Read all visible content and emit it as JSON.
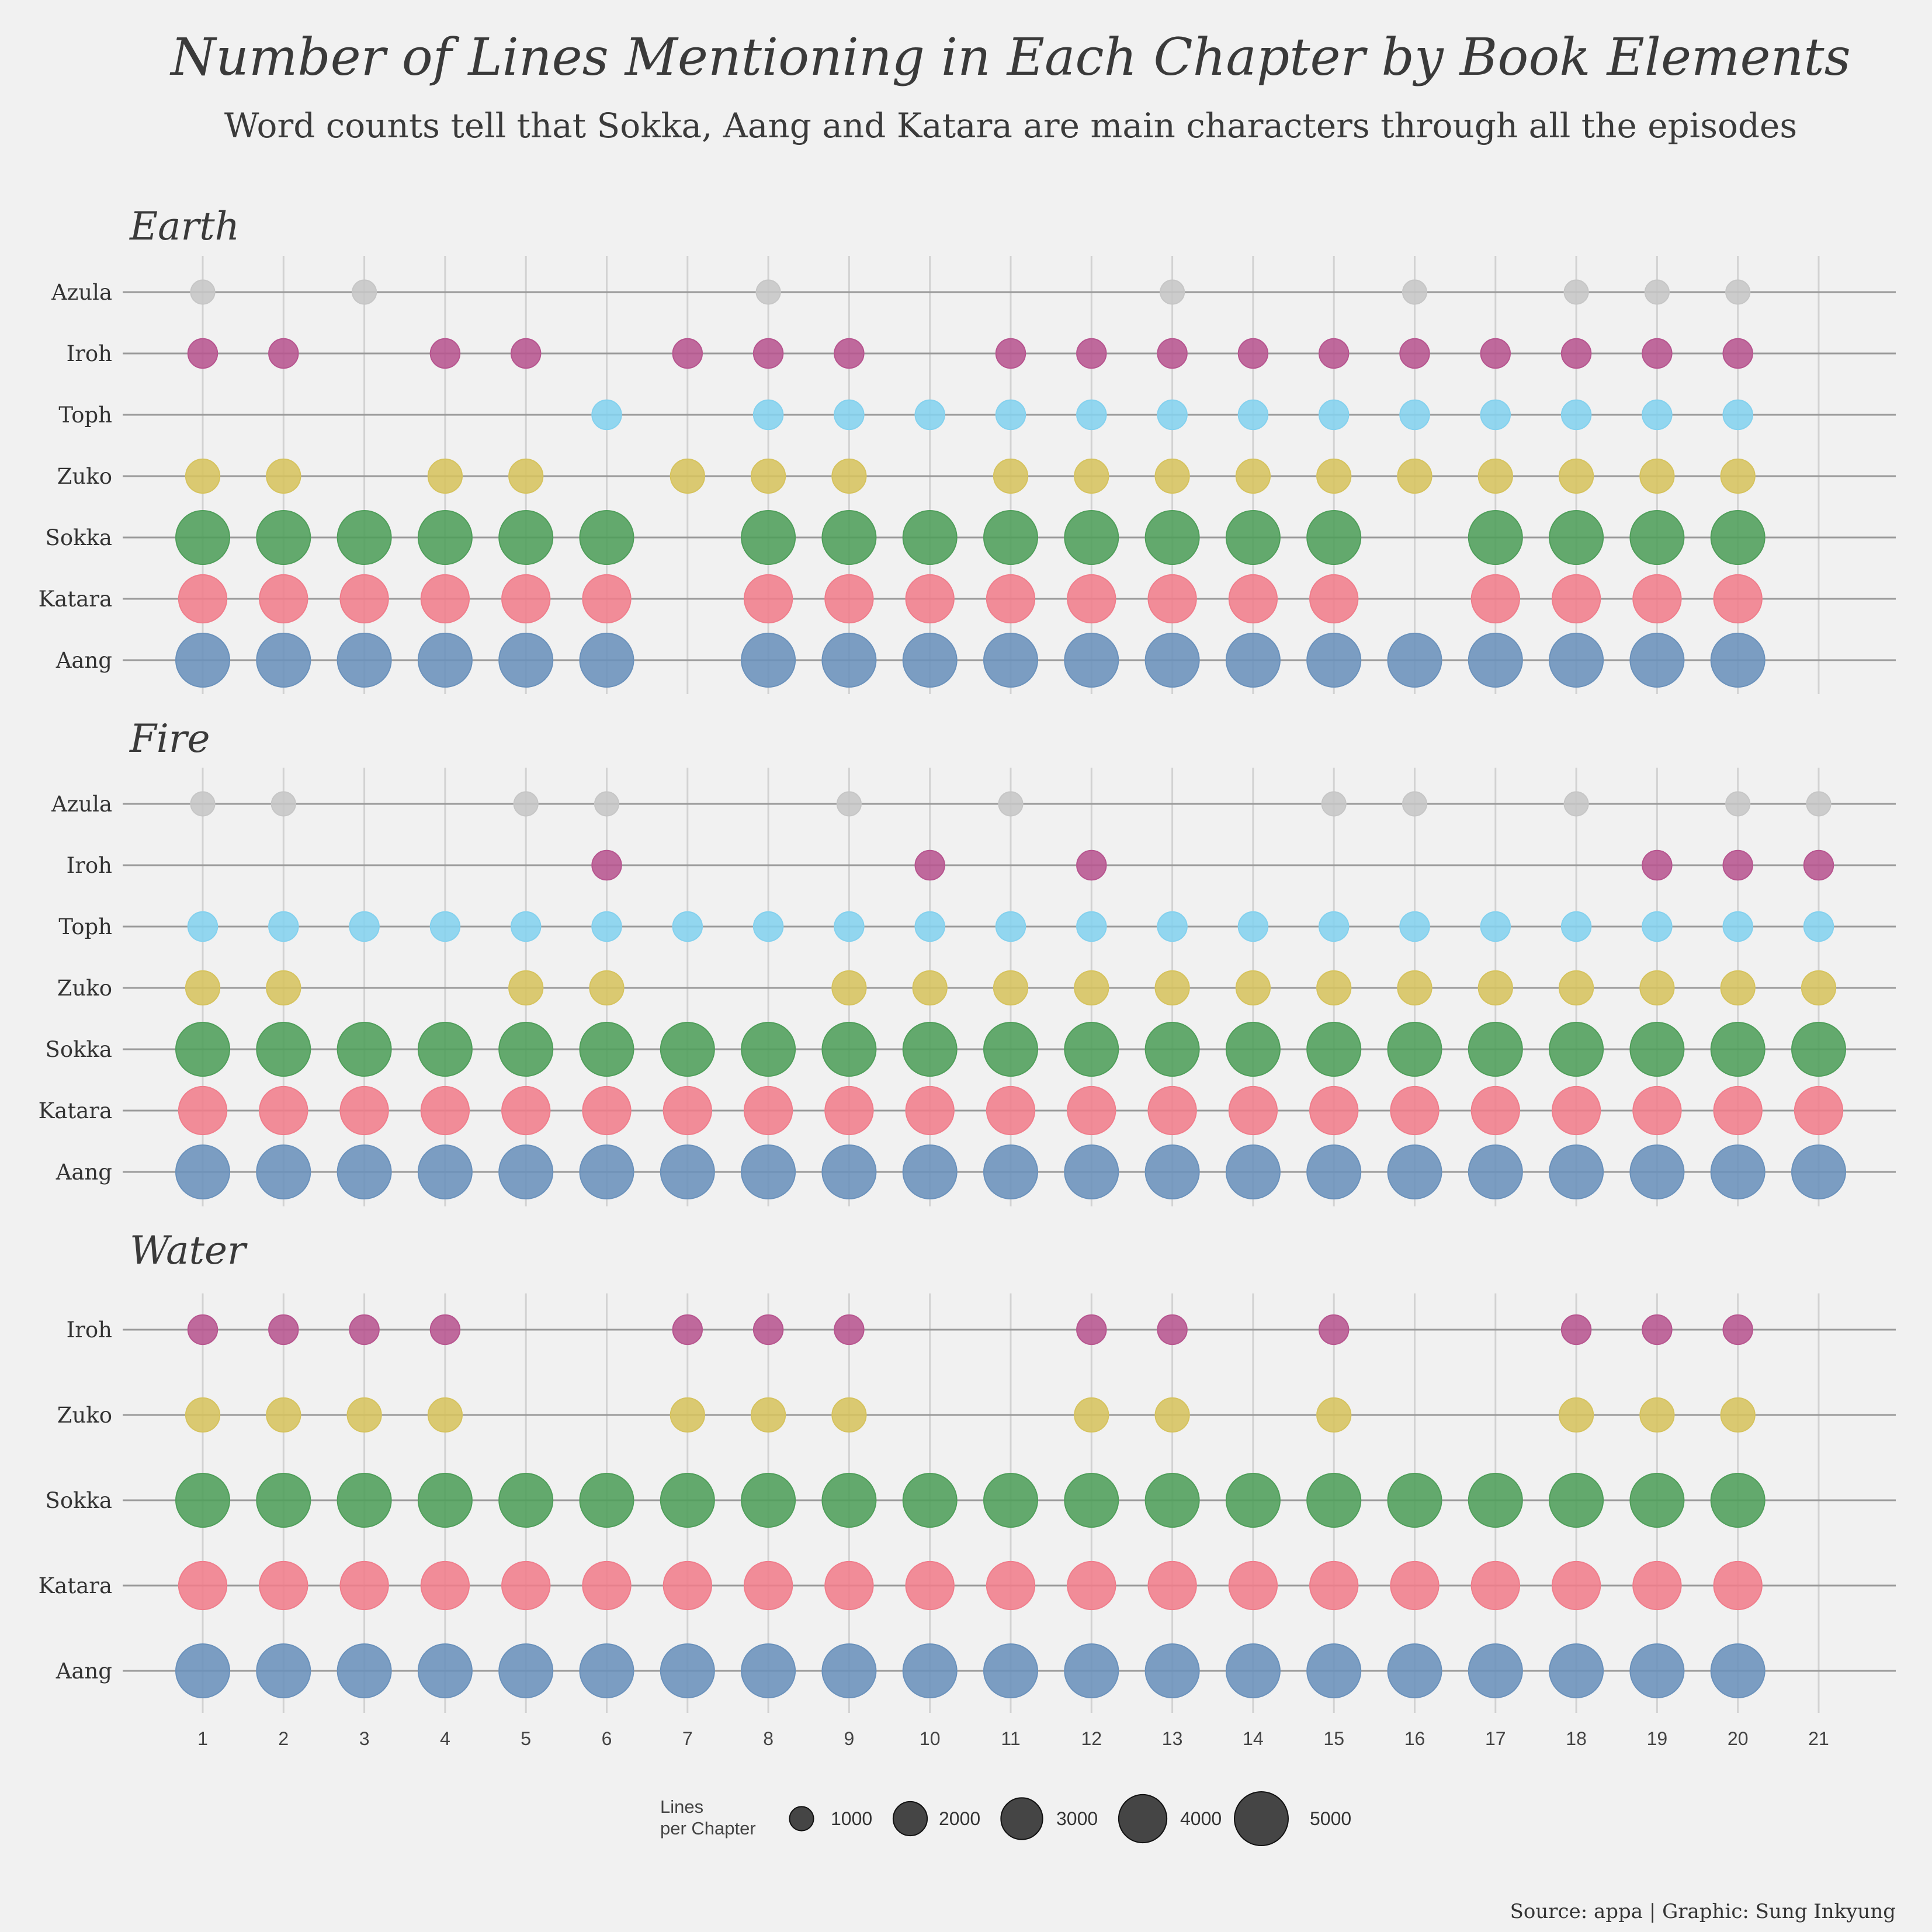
{
  "chart_data": {
    "type": "scatter",
    "title": "Number of Lines Mentioning in Each Chapter by Book Elements",
    "subtitle": "Word counts tell that Sokka, Aang and Katara are main characters through all the episodes",
    "caption": "Source: appa | Graphic: Sung Inkyung",
    "x_ticks": [
      1,
      2,
      3,
      4,
      5,
      6,
      7,
      8,
      9,
      10,
      11,
      12,
      13,
      14,
      15,
      16,
      17,
      18,
      19,
      20,
      21
    ],
    "colors": {
      "Aang": "#6a91bb",
      "Katara": "#f07d8b",
      "Sokka": "#4f9e5a",
      "Zuko": "#d6c35e",
      "Toph": "#84d1ee",
      "Iroh": "#b7558f",
      "Azula": "#c6c6c6"
    },
    "size_by_character": {
      "Aang": 5000,
      "Katara": 4000,
      "Sokka": 5000,
      "Zuko": 2000,
      "Toph": 1500,
      "Iroh": 1500,
      "Azula": 1000
    },
    "legend": {
      "title": "Lines\nper Chapter",
      "values": [
        1000,
        2000,
        3000,
        4000,
        5000
      ],
      "labels": [
        "1000",
        "2000",
        "3000",
        "4000",
        "5000"
      ]
    },
    "panels": [
      {
        "name": "Earth",
        "characters": [
          "Azula",
          "Iroh",
          "Toph",
          "Zuko",
          "Sokka",
          "Katara",
          "Aang"
        ],
        "chapters": {
          "Azula": [
            1,
            3,
            8,
            13,
            16,
            18,
            19,
            20
          ],
          "Iroh": [
            1,
            2,
            4,
            5,
            7,
            8,
            9,
            11,
            12,
            13,
            14,
            15,
            16,
            17,
            18,
            19,
            20
          ],
          "Toph": [
            6,
            8,
            9,
            10,
            11,
            12,
            13,
            14,
            15,
            16,
            17,
            18,
            19,
            20
          ],
          "Zuko": [
            1,
            2,
            4,
            5,
            7,
            8,
            9,
            11,
            12,
            13,
            14,
            15,
            16,
            17,
            18,
            19,
            20
          ],
          "Sokka": [
            1,
            2,
            3,
            4,
            5,
            6,
            8,
            9,
            10,
            11,
            12,
            13,
            14,
            15,
            17,
            18,
            19,
            20
          ],
          "Katara": [
            1,
            2,
            3,
            4,
            5,
            6,
            8,
            9,
            10,
            11,
            12,
            13,
            14,
            15,
            17,
            18,
            19,
            20
          ],
          "Aang": [
            1,
            2,
            3,
            4,
            5,
            6,
            8,
            9,
            10,
            11,
            12,
            13,
            14,
            15,
            16,
            17,
            18,
            19,
            20
          ]
        }
      },
      {
        "name": "Fire",
        "characters": [
          "Azula",
          "Iroh",
          "Toph",
          "Zuko",
          "Sokka",
          "Katara",
          "Aang"
        ],
        "chapters": {
          "Azula": [
            1,
            2,
            5,
            6,
            9,
            11,
            15,
            16,
            18,
            20,
            21
          ],
          "Iroh": [
            6,
            10,
            12,
            19,
            20,
            21
          ],
          "Toph": [
            1,
            2,
            3,
            4,
            5,
            6,
            7,
            8,
            9,
            10,
            11,
            12,
            13,
            14,
            15,
            16,
            17,
            18,
            19,
            20,
            21
          ],
          "Zuko": [
            1,
            2,
            5,
            6,
            9,
            10,
            11,
            12,
            13,
            14,
            15,
            16,
            17,
            18,
            19,
            20,
            21
          ],
          "Sokka": [
            1,
            2,
            3,
            4,
            5,
            6,
            7,
            8,
            9,
            10,
            11,
            12,
            13,
            14,
            15,
            16,
            17,
            18,
            19,
            20,
            21
          ],
          "Katara": [
            1,
            2,
            3,
            4,
            5,
            6,
            7,
            8,
            9,
            10,
            11,
            12,
            13,
            14,
            15,
            16,
            17,
            18,
            19,
            20,
            21
          ],
          "Aang": [
            1,
            2,
            3,
            4,
            5,
            6,
            7,
            8,
            9,
            10,
            11,
            12,
            13,
            14,
            15,
            16,
            17,
            18,
            19,
            20,
            21
          ]
        }
      },
      {
        "name": "Water",
        "characters": [
          "Iroh",
          "Zuko",
          "Sokka",
          "Katara",
          "Aang"
        ],
        "chapters": {
          "Iroh": [
            1,
            2,
            3,
            4,
            7,
            8,
            9,
            12,
            13,
            15,
            18,
            19,
            20
          ],
          "Zuko": [
            1,
            2,
            3,
            4,
            7,
            8,
            9,
            12,
            13,
            15,
            18,
            19,
            20
          ],
          "Sokka": [
            1,
            2,
            3,
            4,
            5,
            6,
            7,
            8,
            9,
            10,
            11,
            12,
            13,
            14,
            15,
            16,
            17,
            18,
            19,
            20
          ],
          "Katara": [
            1,
            2,
            3,
            4,
            5,
            6,
            7,
            8,
            9,
            10,
            11,
            12,
            13,
            14,
            15,
            16,
            17,
            18,
            19,
            20
          ],
          "Aang": [
            1,
            2,
            3,
            4,
            5,
            6,
            7,
            8,
            9,
            10,
            11,
            12,
            13,
            14,
            15,
            16,
            17,
            18,
            19,
            20
          ]
        }
      }
    ]
  }
}
